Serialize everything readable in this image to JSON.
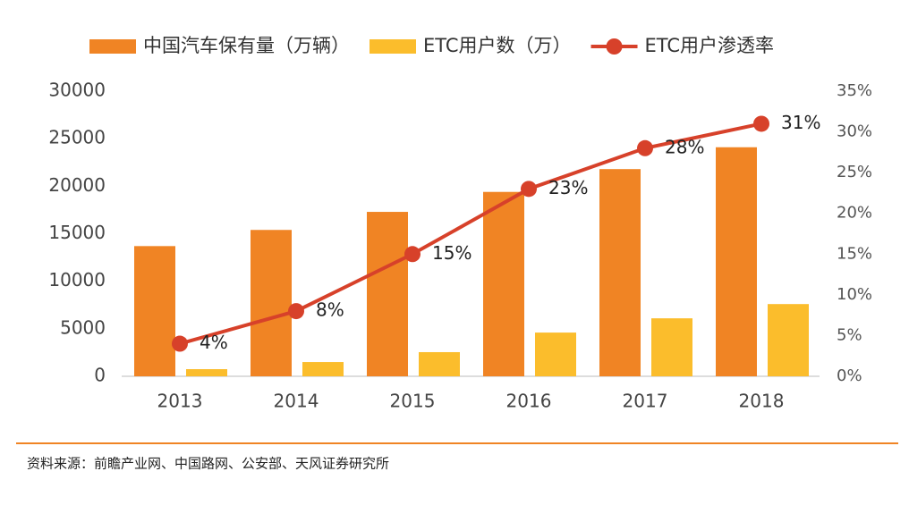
{
  "chart_data": {
    "type": "bar_line",
    "categories": [
      "2013",
      "2014",
      "2015",
      "2016",
      "2017",
      "2018"
    ],
    "series": [
      {
        "name": "中国汽车保有量（万辆）",
        "type": "bar",
        "color": "#f08424",
        "values": [
          13700,
          15400,
          17300,
          19400,
          21800,
          24100
        ]
      },
      {
        "name": "ETC用户数（万）",
        "type": "bar",
        "color": "#fbbd2c",
        "values": [
          750,
          1500,
          2540,
          4600,
          6100,
          7600
        ]
      },
      {
        "name": "ETC用户渗透率",
        "type": "line",
        "axis": "y2",
        "color": "#d7412a",
        "values": [
          4,
          8,
          15,
          23,
          28,
          31
        ],
        "value_labels": [
          "4%",
          "8%",
          "15%",
          "23%",
          "28%",
          "31%"
        ]
      }
    ],
    "ylim": [
      0,
      30000
    ],
    "yticks": [
      0,
      5000,
      10000,
      15000,
      20000,
      25000,
      30000
    ],
    "y2lim": [
      0,
      35
    ],
    "y2ticks": [
      {
        "value": 0,
        "label": "0%"
      },
      {
        "value": 5,
        "label": "5%"
      },
      {
        "value": 10,
        "label": "10%"
      },
      {
        "value": 15,
        "label": "15%"
      },
      {
        "value": 20,
        "label": "20%"
      },
      {
        "value": 25,
        "label": "25%"
      },
      {
        "value": 30,
        "label": "30%"
      },
      {
        "value": 35,
        "label": "35%"
      }
    ],
    "legend": "top",
    "source": "资料来源：前瞻产业网、中国路网、公安部、天风证券研究所"
  }
}
